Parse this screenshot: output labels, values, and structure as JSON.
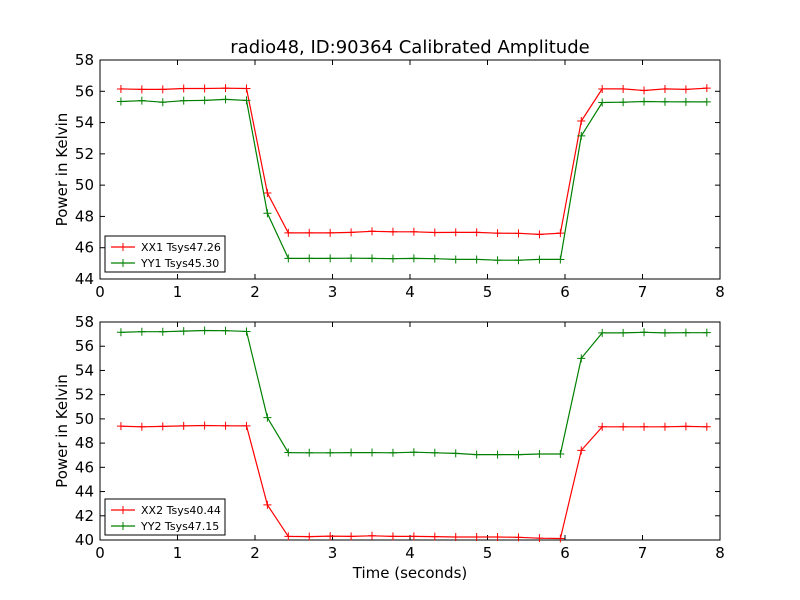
{
  "title": "radio48, ID:90364 Calibrated Amplitude",
  "xlabel": "Time (seconds)",
  "chart_data": [
    {
      "type": "line",
      "xlabel": "",
      "ylabel": "Power in Kelvin",
      "xlim": [
        0,
        8
      ],
      "ylim": [
        44,
        58
      ],
      "xticks": [
        0,
        1,
        2,
        3,
        4,
        5,
        6,
        7,
        8
      ],
      "yticks": [
        44,
        46,
        48,
        50,
        52,
        54,
        56,
        58
      ],
      "legend_position": "lower-left",
      "grid": false,
      "series": [
        {
          "name": "XX1 Tsys47.26",
          "color": "#ff0000",
          "x": [
            0.27,
            0.54,
            0.81,
            1.08,
            1.35,
            1.62,
            1.89,
            2.16,
            2.43,
            2.7,
            2.97,
            3.24,
            3.51,
            3.78,
            4.05,
            4.32,
            4.59,
            4.86,
            5.13,
            5.4,
            5.67,
            5.94,
            6.21,
            6.48,
            6.75,
            7.02,
            7.29,
            7.56,
            7.83
          ],
          "y": [
            56.15,
            56.12,
            56.12,
            56.18,
            56.18,
            56.2,
            56.18,
            49.5,
            46.95,
            46.95,
            46.95,
            46.98,
            47.05,
            47.02,
            47.02,
            46.97,
            46.98,
            46.98,
            46.93,
            46.92,
            46.85,
            46.93,
            54.1,
            56.15,
            56.15,
            56.05,
            56.15,
            56.12,
            56.2
          ]
        },
        {
          "name": "YY1 Tsys45.30",
          "color": "#008000",
          "x": [
            0.27,
            0.54,
            0.81,
            1.08,
            1.35,
            1.62,
            1.89,
            2.16,
            2.43,
            2.7,
            2.97,
            3.24,
            3.51,
            3.78,
            4.05,
            4.32,
            4.59,
            4.86,
            5.13,
            5.4,
            5.67,
            5.94,
            6.21,
            6.48,
            6.75,
            7.02,
            7.29,
            7.56,
            7.83
          ],
          "y": [
            55.35,
            55.4,
            55.3,
            55.4,
            55.42,
            55.48,
            55.42,
            48.2,
            45.32,
            45.32,
            45.32,
            45.33,
            45.32,
            45.3,
            45.32,
            45.3,
            45.25,
            45.25,
            45.2,
            45.2,
            45.25,
            45.25,
            53.15,
            55.28,
            55.3,
            55.35,
            55.33,
            55.32,
            55.32
          ]
        }
      ]
    },
    {
      "type": "line",
      "xlabel": "Time (seconds)",
      "ylabel": "Power in Kelvin",
      "xlim": [
        0,
        8
      ],
      "ylim": [
        40,
        58
      ],
      "xticks": [
        0,
        1,
        2,
        3,
        4,
        5,
        6,
        7,
        8
      ],
      "yticks": [
        40,
        42,
        44,
        46,
        48,
        50,
        52,
        54,
        56,
        58
      ],
      "legend_position": "lower-left",
      "grid": false,
      "series": [
        {
          "name": "XX2 Tsys40.44",
          "color": "#ff0000",
          "x": [
            0.27,
            0.54,
            0.81,
            1.08,
            1.35,
            1.62,
            1.89,
            2.16,
            2.43,
            2.7,
            2.97,
            3.24,
            3.51,
            3.78,
            4.05,
            4.32,
            4.59,
            4.86,
            5.13,
            5.4,
            5.67,
            5.94,
            6.21,
            6.48,
            6.75,
            7.02,
            7.29,
            7.56,
            7.83
          ],
          "y": [
            49.4,
            49.35,
            49.38,
            49.42,
            49.45,
            49.43,
            49.42,
            42.9,
            40.3,
            40.28,
            40.32,
            40.3,
            40.35,
            40.3,
            40.3,
            40.28,
            40.25,
            40.25,
            40.25,
            40.22,
            40.15,
            40.12,
            47.4,
            49.35,
            49.35,
            49.35,
            49.35,
            49.38,
            49.35
          ]
        },
        {
          "name": "YY2 Tsys47.15",
          "color": "#008000",
          "x": [
            0.27,
            0.54,
            0.81,
            1.08,
            1.35,
            1.62,
            1.89,
            2.16,
            2.43,
            2.7,
            2.97,
            3.24,
            3.51,
            3.78,
            4.05,
            4.32,
            4.59,
            4.86,
            5.13,
            5.4,
            5.67,
            5.94,
            6.21,
            6.48,
            6.75,
            7.02,
            7.29,
            7.56,
            7.83
          ],
          "y": [
            57.15,
            57.2,
            57.2,
            57.25,
            57.3,
            57.28,
            57.22,
            50.1,
            47.22,
            47.2,
            47.2,
            47.22,
            47.22,
            47.2,
            47.25,
            47.2,
            47.15,
            47.05,
            47.05,
            47.05,
            47.1,
            47.1,
            55.0,
            57.1,
            57.1,
            57.15,
            57.1,
            57.12,
            57.12
          ]
        }
      ]
    }
  ]
}
